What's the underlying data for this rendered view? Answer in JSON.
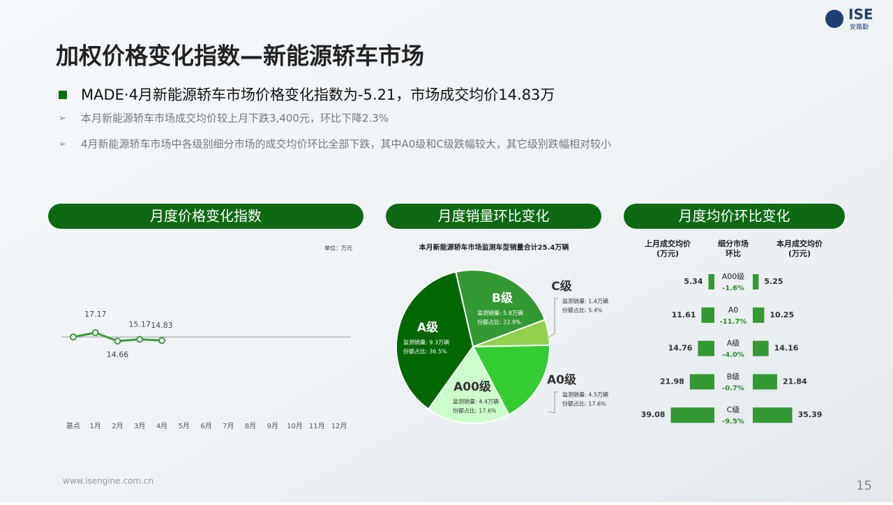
{
  "header": {
    "title": "加权价格变化指数—新能源轿车市场",
    "bullet": "MADE·4月新能源轿车市场价格变化指数为-5.21，市场成交均价14.83万",
    "points": [
      "本月新能源轿车市场成交均价较上月下跌3,400元，环比下降2.3%",
      "4月新能源轿车市场中各级别细分市场的成交均价环比全部下跌，其中A0级和C级跌幅较大，其它级别跌幅相对较小"
    ],
    "logo": "ISE",
    "logo_sub": "安路勤"
  },
  "footer": {
    "url": "www.isengine.com.cn",
    "page": "15"
  },
  "chart_data": [
    {
      "type": "line",
      "title": "月度价格变化指数",
      "unit": "单位：万元",
      "categories": [
        "基点",
        "1月",
        "2月",
        "3月",
        "4月",
        "5月",
        "6月",
        "7月",
        "8月",
        "9月",
        "10月",
        "11月",
        "12月"
      ],
      "values": [
        15.9,
        17.17,
        14.66,
        15.17,
        14.83,
        null,
        null,
        null,
        null,
        null,
        null,
        null,
        null
      ],
      "color": "#3a9a3a",
      "ylim": [
        0,
        30
      ]
    },
    {
      "type": "pie",
      "title": "月度销量环比变化",
      "subtitle": "本月新能源轿车市场监测车型销量合计25.4万辆",
      "categories": [
        "B级",
        "C级",
        "A0级",
        "A00级",
        "A级"
      ],
      "values": [
        22.9,
        5.4,
        17.6,
        17.6,
        36.5
      ],
      "value_labels": [
        "份额占比: 22.9%",
        "份额占比: 5.4%",
        "份额占比: 17.6%",
        "份额占比: 17.6%",
        "份额占比: 36.5%"
      ],
      "details": [
        "监测销量: 5.8万辆",
        "监测销量: 1.4万辆",
        "监测销量: 4.5万辆",
        "监测销量: 4.4万辆",
        "监测销量: 9.3万辆"
      ],
      "colors": [
        "#339933",
        "#92d050",
        "#33cc33",
        "#ccffcc",
        "#006600"
      ]
    },
    {
      "type": "hbar",
      "title": "月度均价环比变化",
      "categories": [
        "A00级",
        "A0",
        "A级",
        "B级",
        "C级"
      ],
      "series": [
        {
          "name": "上月成交均价",
          "unit": "(万元)",
          "color": "#339933",
          "values": [
            5.34,
            11.61,
            14.76,
            21.98,
            39.08
          ]
        },
        {
          "name": "本月成交均价",
          "unit": "(万元)",
          "color": "#339933",
          "values": [
            5.25,
            10.25,
            14.16,
            21.84,
            35.39
          ]
        }
      ],
      "change_title": [
        "细分市场",
        "环比"
      ],
      "changes": [
        -1.6,
        -11.7,
        -4.0,
        -0.7,
        -9.5
      ],
      "change_labels": [
        "-1.6%",
        "-11.7%",
        "-4.0%",
        "-0.7%",
        "-9.5%"
      ],
      "xlim": [
        0,
        40
      ]
    }
  ]
}
